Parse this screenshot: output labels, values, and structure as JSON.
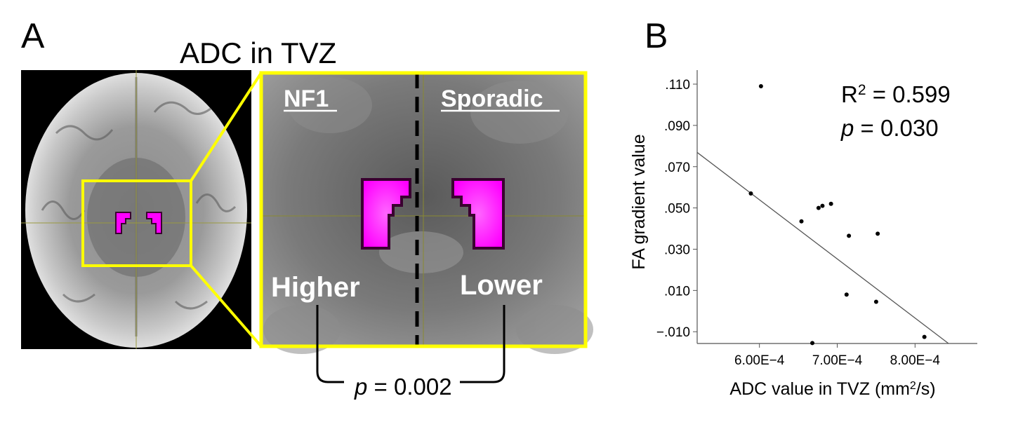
{
  "panel_a": {
    "letter": "A",
    "title": "ADC in TVZ",
    "zoom": {
      "left_label": "NF1",
      "right_label": "Sporadic",
      "left_result": "Higher",
      "right_result": "Lower"
    },
    "pvalue": {
      "p": "p",
      "rest": " = 0.002"
    }
  },
  "panel_b": {
    "letter": "B",
    "stats": {
      "r": "R",
      "sup": "2",
      "r_rest": " = 0.599",
      "p": "p",
      "p_rest": " = 0.030"
    }
  },
  "colors": {
    "highlight": "#ffff00",
    "roi": "#ff00ff",
    "roi_border": "#3a0030",
    "mri_bg": "#6e6e6e"
  },
  "chart_data": {
    "type": "scatter",
    "title": "",
    "xlabel": "ADC value in TVZ (mm²/s)",
    "ylabel": "FA gradient value",
    "xlim": [
      0.00052,
      0.00088
    ],
    "ylim": [
      -0.0157,
      0.1168
    ],
    "x_ticks": [
      0.0006,
      0.0007,
      0.0008
    ],
    "x_tick_labels": [
      "6.00E−4",
      "7.00E−4",
      "8.00E−4"
    ],
    "y_ticks": [
      -0.01,
      0.01,
      0.03,
      0.05,
      0.07,
      0.09,
      0.11
    ],
    "y_tick_labels": [
      "−.010",
      ".010",
      ".030",
      ".050",
      ".070",
      ".090",
      ".110"
    ],
    "points": [
      {
        "x": 0.000602,
        "y": 0.109
      },
      {
        "x": 0.000589,
        "y": 0.057
      },
      {
        "x": 0.000654,
        "y": 0.0435
      },
      {
        "x": 0.000676,
        "y": 0.05
      },
      {
        "x": 0.000681,
        "y": 0.051
      },
      {
        "x": 0.000692,
        "y": 0.052
      },
      {
        "x": 0.000715,
        "y": 0.0365
      },
      {
        "x": 0.000752,
        "y": 0.0375
      },
      {
        "x": 0.000712,
        "y": 0.008
      },
      {
        "x": 0.00075,
        "y": 0.0045
      },
      {
        "x": 0.000668,
        "y": -0.0155
      },
      {
        "x": 0.000812,
        "y": -0.0125
      }
    ],
    "fit_line": {
      "x0": 0.00052,
      "y0": 0.0769,
      "x1": 0.000843,
      "y1": -0.0157
    }
  }
}
